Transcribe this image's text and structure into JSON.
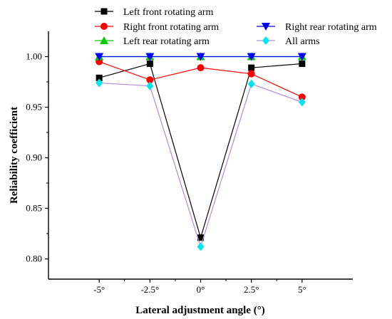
{
  "chart_data": {
    "type": "line",
    "xlabel": "Lateral adjustment angle (°)",
    "ylabel": "Reliability coefficient",
    "categories": [
      "-5°",
      "-2.5°",
      "0°",
      "2.5°",
      "5°"
    ],
    "x": [
      -5,
      -2.5,
      0,
      2.5,
      5
    ],
    "xlim": [
      -7.5,
      7.5
    ],
    "ylim": [
      0.78,
      1.025
    ],
    "yticks": [
      0.8,
      0.85,
      0.9,
      0.95,
      1.0
    ],
    "ytick_labels": [
      "0.80",
      "0.85",
      "0.90",
      "0.95",
      "1.00"
    ],
    "grid": false,
    "legend_position": "top",
    "series": [
      {
        "name": "Left front rotating arm",
        "color": "#000000",
        "marker": "square",
        "values": [
          0.979,
          0.993,
          0.821,
          0.989,
          0.993
        ]
      },
      {
        "name": "Right front rotating arm",
        "color": "#ff0000",
        "marker": "circle",
        "values": [
          0.995,
          0.977,
          0.989,
          0.983,
          0.96
        ]
      },
      {
        "name": "Left rear rotating arm",
        "color": "#00cc00",
        "marker": "triangle-up",
        "values": [
          1.0,
          1.0,
          1.0,
          1.0,
          1.0
        ]
      },
      {
        "name": "Right rear rotating arm",
        "color": "#0000ff",
        "marker": "triangle-down",
        "values": [
          1.0,
          1.0,
          1.0,
          1.0,
          1.0
        ]
      },
      {
        "name": "All arms",
        "color": "#00e5ee",
        "line_color": "#b48ad6",
        "marker": "diamond",
        "values": [
          0.974,
          0.971,
          0.812,
          0.973,
          0.955
        ]
      }
    ]
  }
}
